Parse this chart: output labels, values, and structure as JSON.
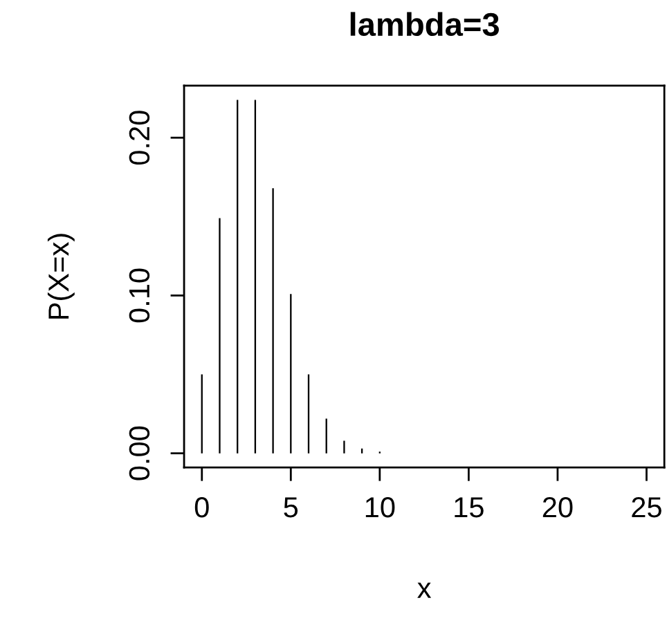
{
  "chart_data": {
    "type": "bar",
    "title": "lambda=3",
    "xlabel": "x",
    "ylabel": "P(X=x)",
    "x": [
      0,
      1,
      2,
      3,
      4,
      5,
      6,
      7,
      8,
      9,
      10,
      11,
      12,
      13,
      14,
      15,
      16,
      17,
      18,
      19,
      20,
      21,
      22,
      23,
      24,
      25
    ],
    "values": [
      0.05,
      0.149,
      0.224,
      0.224,
      0.168,
      0.101,
      0.05,
      0.022,
      0.008,
      0.003,
      0.001,
      0,
      0,
      0,
      0,
      0,
      0,
      0,
      0,
      0,
      0,
      0,
      0,
      0,
      0,
      0
    ],
    "color": "#000000",
    "xlim": [
      -1,
      26
    ],
    "xticks": [
      0,
      5,
      10,
      15,
      20,
      25
    ],
    "ylim": [
      -0.009,
      0.233
    ],
    "yticks": [
      {
        "value": 0,
        "label": "0.00"
      },
      {
        "value": 0.1,
        "label": "0.10"
      },
      {
        "value": 0.2,
        "label": "0.20"
      }
    ],
    "grid": false
  }
}
